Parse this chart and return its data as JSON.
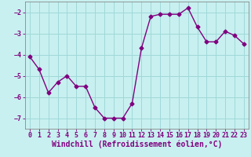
{
  "x": [
    0,
    1,
    2,
    3,
    4,
    5,
    6,
    7,
    8,
    9,
    10,
    11,
    12,
    13,
    14,
    15,
    16,
    17,
    18,
    19,
    20,
    21,
    22,
    23
  ],
  "y": [
    -4.1,
    -4.7,
    -5.8,
    -5.3,
    -5.0,
    -5.5,
    -5.5,
    -6.5,
    -7.0,
    -7.0,
    -7.0,
    -6.3,
    -3.7,
    -2.2,
    -2.1,
    -2.1,
    -2.1,
    -1.8,
    -2.7,
    -3.4,
    -3.4,
    -2.9,
    -3.1,
    -3.5
  ],
  "line_color": "#800080",
  "marker": "D",
  "markersize": 2.5,
  "linewidth": 1.0,
  "bg_color": "#c8f0f0",
  "grid_color": "#a0d8d8",
  "xlabel": "Windchill (Refroidissement éolien,°C)",
  "xlabel_color": "#800080",
  "xlabel_fontsize": 7.0,
  "tick_color": "#800080",
  "tick_fontsize": 6.0,
  "ylim": [
    -7.5,
    -1.5
  ],
  "yticks": [
    -7,
    -6,
    -5,
    -4,
    -3,
    -2
  ],
  "xlim": [
    -0.5,
    23.5
  ],
  "xticks": [
    0,
    1,
    2,
    3,
    4,
    5,
    6,
    7,
    8,
    9,
    10,
    11,
    12,
    13,
    14,
    15,
    16,
    17,
    18,
    19,
    20,
    21,
    22,
    23
  ]
}
